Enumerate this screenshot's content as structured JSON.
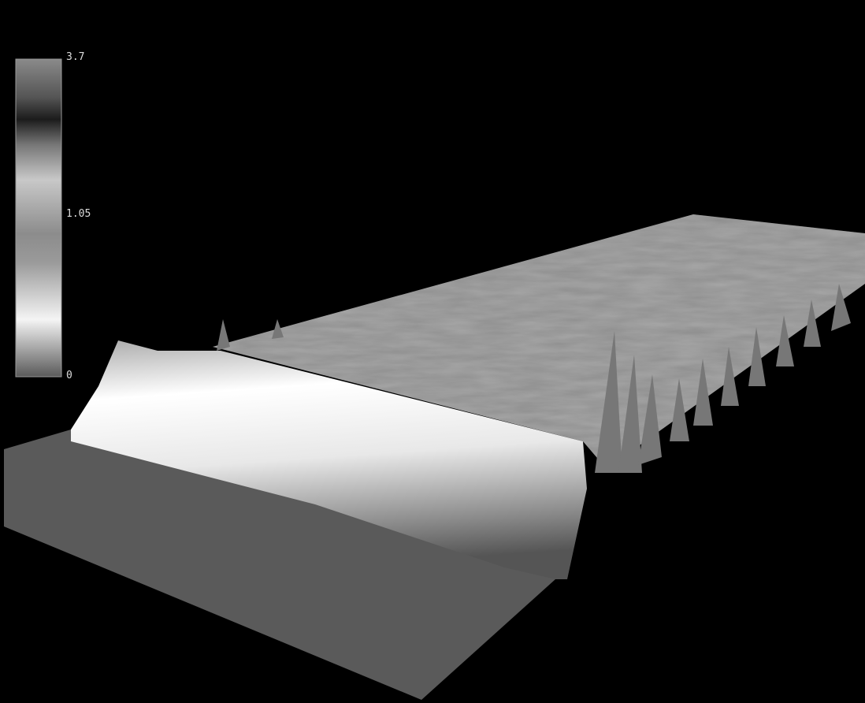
{
  "colorbar": {
    "labels": [
      "3.7",
      "1.05",
      "0"
    ]
  }
}
